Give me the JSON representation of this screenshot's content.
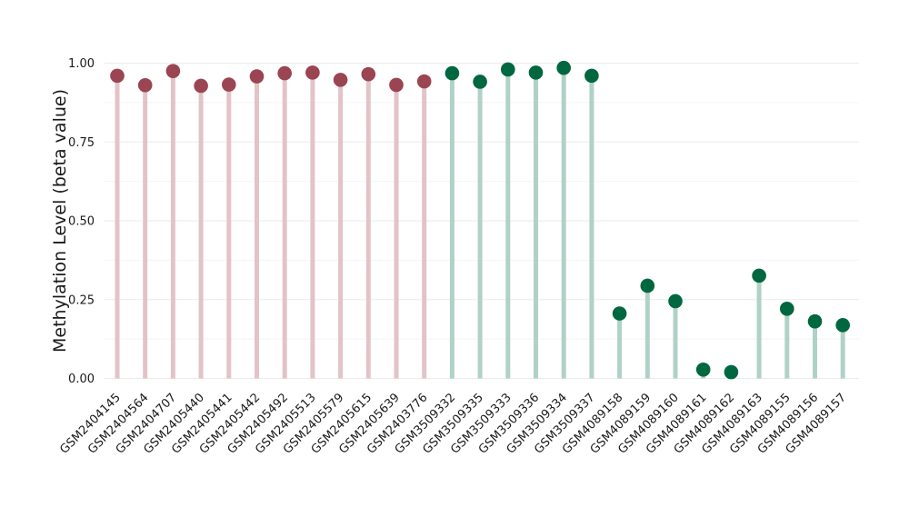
{
  "chart_data": {
    "type": "lollipop",
    "title": "",
    "xlabel": "",
    "ylabel": "Methylation Level (beta value)",
    "ylim": [
      0,
      1
    ],
    "yticks": [
      0.0,
      0.25,
      0.5,
      0.75,
      1.0
    ],
    "ytick_labels": [
      "0.00",
      "0.25",
      "0.50",
      "0.75",
      "1.00"
    ],
    "grid": true,
    "legend": "none",
    "colors": {
      "group1_dot": "#9b4452",
      "group1_stem": "#e2c3c8",
      "group2_dot": "#00673f",
      "group2_stem": "#b0d1c6",
      "grid": "#ebebeb"
    },
    "points": [
      {
        "label": "GSM2404145",
        "value": 0.96,
        "group": 1
      },
      {
        "label": "GSM2404564",
        "value": 0.93,
        "group": 1
      },
      {
        "label": "GSM2404707",
        "value": 0.975,
        "group": 1
      },
      {
        "label": "GSM2405440",
        "value": 0.928,
        "group": 1
      },
      {
        "label": "GSM2405441",
        "value": 0.932,
        "group": 1
      },
      {
        "label": "GSM2405442",
        "value": 0.958,
        "group": 1
      },
      {
        "label": "GSM2405492",
        "value": 0.968,
        "group": 1
      },
      {
        "label": "GSM2405513",
        "value": 0.97,
        "group": 1
      },
      {
        "label": "GSM2405579",
        "value": 0.947,
        "group": 1
      },
      {
        "label": "GSM2405615",
        "value": 0.965,
        "group": 1
      },
      {
        "label": "GSM2405639",
        "value": 0.931,
        "group": 1
      },
      {
        "label": "GSM2403776",
        "value": 0.942,
        "group": 1
      },
      {
        "label": "GSM3509332",
        "value": 0.968,
        "group": 2
      },
      {
        "label": "GSM3509335",
        "value": 0.941,
        "group": 2
      },
      {
        "label": "GSM3509333",
        "value": 0.98,
        "group": 2
      },
      {
        "label": "GSM3509336",
        "value": 0.97,
        "group": 2
      },
      {
        "label": "GSM3509334",
        "value": 0.985,
        "group": 2
      },
      {
        "label": "GSM3509337",
        "value": 0.96,
        "group": 2
      },
      {
        "label": "GSM4089158",
        "value": 0.206,
        "group": 2
      },
      {
        "label": "GSM4089159",
        "value": 0.294,
        "group": 2
      },
      {
        "label": "GSM4089160",
        "value": 0.245,
        "group": 2
      },
      {
        "label": "GSM4089161",
        "value": 0.028,
        "group": 2
      },
      {
        "label": "GSM4089162",
        "value": 0.02,
        "group": 2
      },
      {
        "label": "GSM4089163",
        "value": 0.326,
        "group": 2
      },
      {
        "label": "GSM4089155",
        "value": 0.221,
        "group": 2
      },
      {
        "label": "GSM4089156",
        "value": 0.181,
        "group": 2
      },
      {
        "label": "GSM4089157",
        "value": 0.169,
        "group": 2
      }
    ]
  }
}
